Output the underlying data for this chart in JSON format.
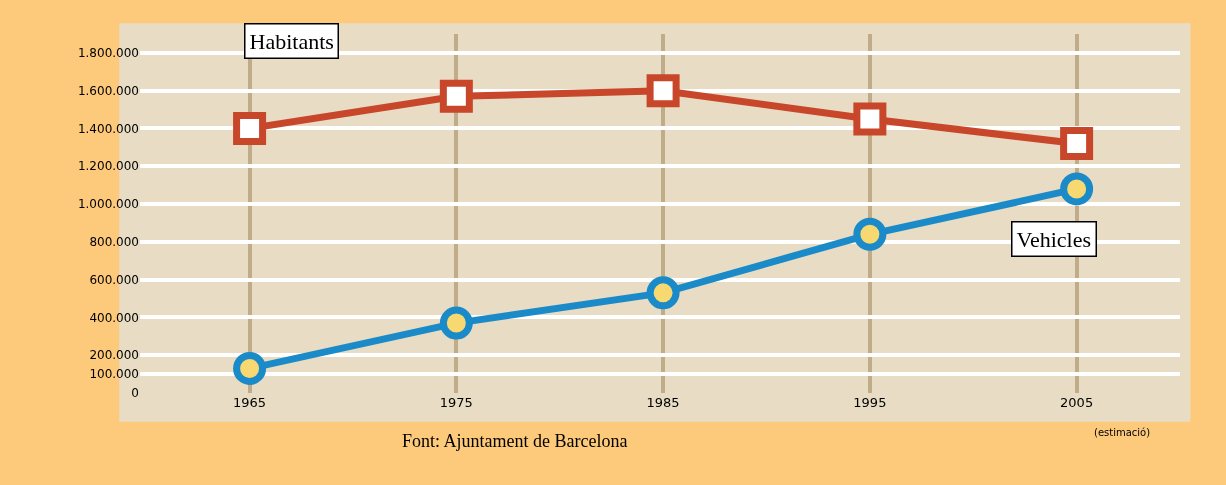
{
  "chart_data": {
    "type": "line",
    "categories": [
      "1965",
      "1975",
      "1985",
      "1995",
      "2005"
    ],
    "series": [
      {
        "name": "Habitants",
        "color": "#c8462a",
        "marker": "square",
        "values": [
          1400000,
          1570000,
          1600000,
          1450000,
          1320000
        ]
      },
      {
        "name": "Vehicles",
        "color": "#1a8ac8",
        "marker": "circle",
        "values": [
          130000,
          370000,
          530000,
          840000,
          1080000
        ]
      }
    ],
    "ylim": [
      0,
      1900000
    ],
    "yticks": [
      0,
      {
        "value": 100000,
        "label": "100.000"
      },
      {
        "value": 200000,
        "label": "200.000"
      },
      {
        "value": 400000,
        "label": "400.000"
      },
      {
        "value": 600000,
        "label": "600.000"
      },
      {
        "value": 800000,
        "label": "800.000"
      },
      {
        "value": 1000000,
        "label": "1.000.000"
      },
      {
        "value": 1200000,
        "label": "1.200.000"
      },
      {
        "value": 1400000,
        "label": "1.400.000"
      },
      {
        "value": 1600000,
        "label": "1.600.000"
      },
      {
        "value": 1800000,
        "label": "1.800.000"
      }
    ],
    "grid": true,
    "legend": false,
    "annotations": [
      "(estimació)",
      "Font: Ajuntament de Barcelona"
    ]
  }
}
